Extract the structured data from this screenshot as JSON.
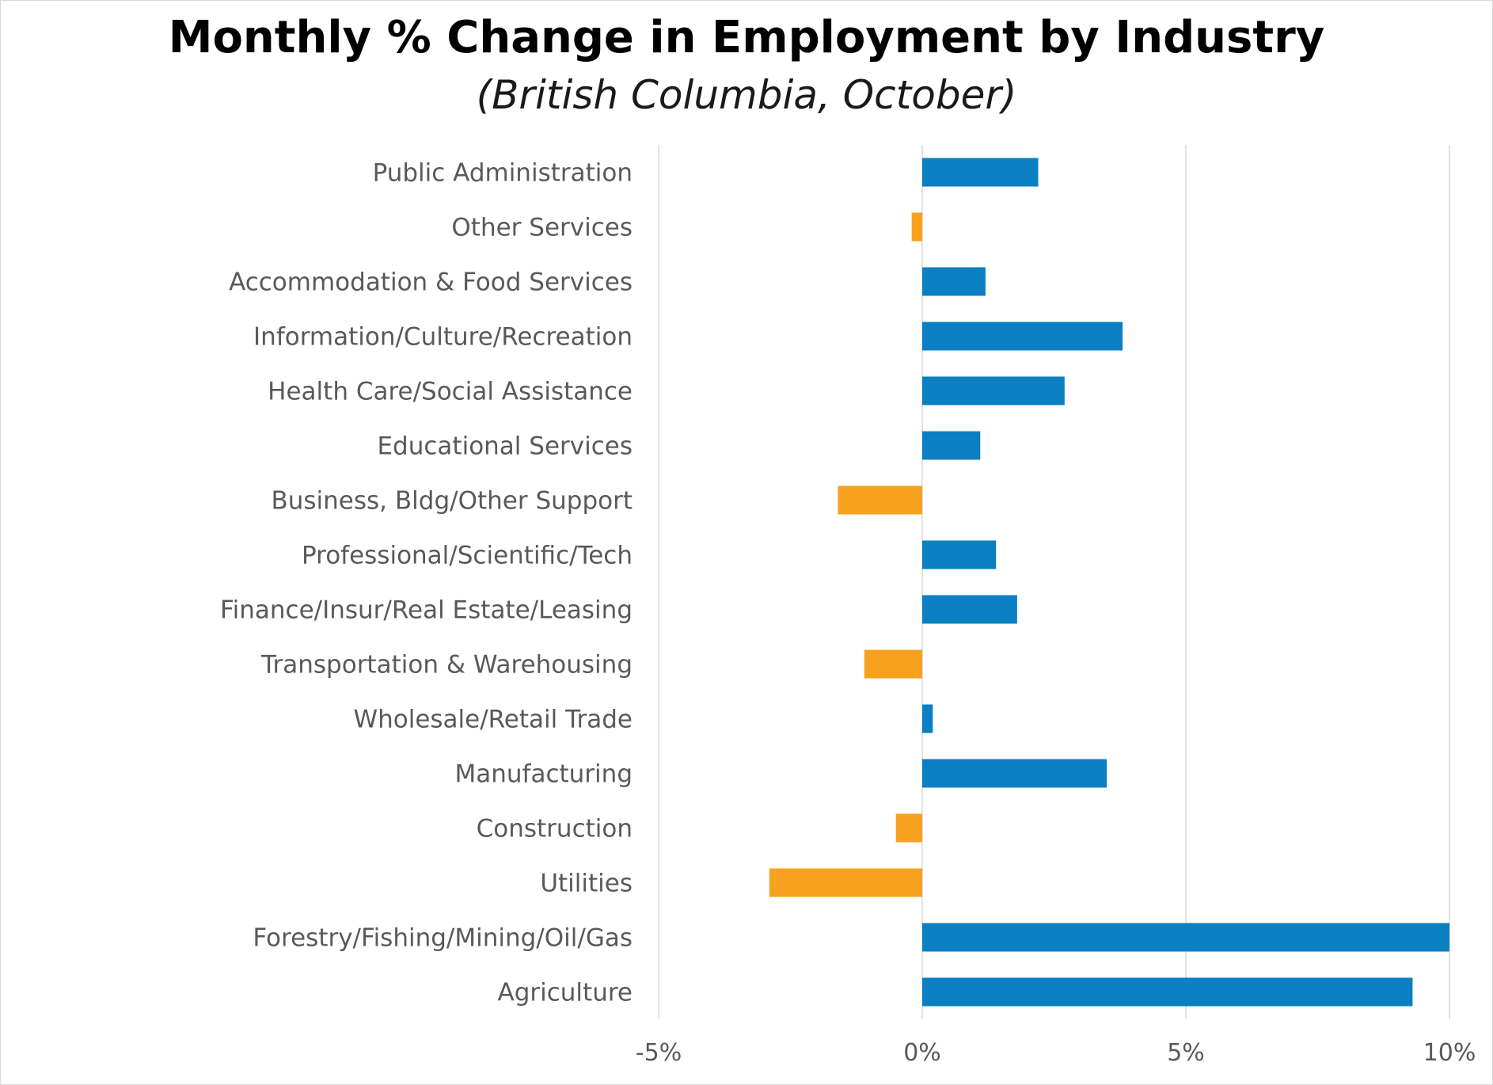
{
  "chart_data": {
    "type": "bar",
    "orientation": "horizontal",
    "title": "Monthly % Change in Employment by Industry",
    "subtitle": "(British Columbia, October)",
    "xlabel": "",
    "ylabel": "",
    "xlim": [
      -5,
      10
    ],
    "x_ticks": [
      -5,
      0,
      5,
      10
    ],
    "x_tick_labels": [
      "-5%",
      "0%",
      "5%",
      "10%"
    ],
    "grid": "vertical",
    "categories": [
      "Public Administration",
      "Other Services",
      "Accommodation & Food Services",
      "Information/Culture/Recreation",
      "Health Care/Social Assistance",
      "Educational Services",
      "Business, Bldg/Other Support",
      "Professional/Scientific/Tech",
      "Finance/Insur/Real Estate/Leasing",
      "Transportation & Warehousing",
      "Wholesale/Retail Trade",
      "Manufacturing",
      "Construction",
      "Utilities",
      "Forestry/Fishing/Mining/Oil/Gas",
      "Agriculture"
    ],
    "values": [
      2.2,
      -0.2,
      1.2,
      3.8,
      2.7,
      1.1,
      -1.6,
      1.4,
      1.8,
      -1.1,
      0.2,
      3.5,
      -0.5,
      -2.9,
      10.0,
      9.3
    ],
    "colors": {
      "positive": "#0a7fc2",
      "negative": "#f6a21e",
      "gridline": "#d9d9d9",
      "label": "#595959",
      "title": "#000000"
    }
  }
}
